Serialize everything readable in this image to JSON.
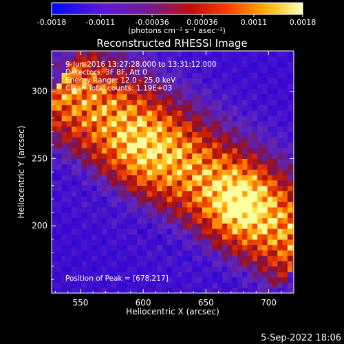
{
  "chart_data": {
    "type": "heatmap",
    "title": "Reconstructed RHESSI Image",
    "xlabel": "Heliocentric X (arcsec)",
    "ylabel": "Heliocentric Y (arcsec)",
    "xlim": [
      527,
      720
    ],
    "ylim": [
      150,
      330
    ],
    "xticks": [
      550,
      600,
      650,
      700
    ],
    "yticks": [
      200,
      250,
      300
    ],
    "colorbar": {
      "label": "(photons cm⁻² s⁻¹ asec⁻²)",
      "ticks": [
        "-0.0018",
        "-0.0011",
        "-0.00036",
        "0.00036",
        "0.0011",
        "0.0018"
      ],
      "range": [
        -0.0018,
        0.0018
      ]
    },
    "annotations": [
      "9-Jun-2016 13:27:28.000 to 13:31:12.000",
      "Detectors: 3F 8F, Att 0",
      "Energy Range: 12.0 - 25.0 keV",
      "Clean     Total counts: 1.19E+03"
    ],
    "peak": {
      "x": 678,
      "y": 217
    },
    "peak_label": "Position of Peak = [678,217]",
    "footer": "5-Sep-2022 18:06",
    "colors": {
      "background": "#000000",
      "low": "#0a00c8",
      "mid_low": "#6a2ec8",
      "mid": "#9a1616",
      "high": "#ff8000",
      "peak": "#ffff80"
    }
  }
}
